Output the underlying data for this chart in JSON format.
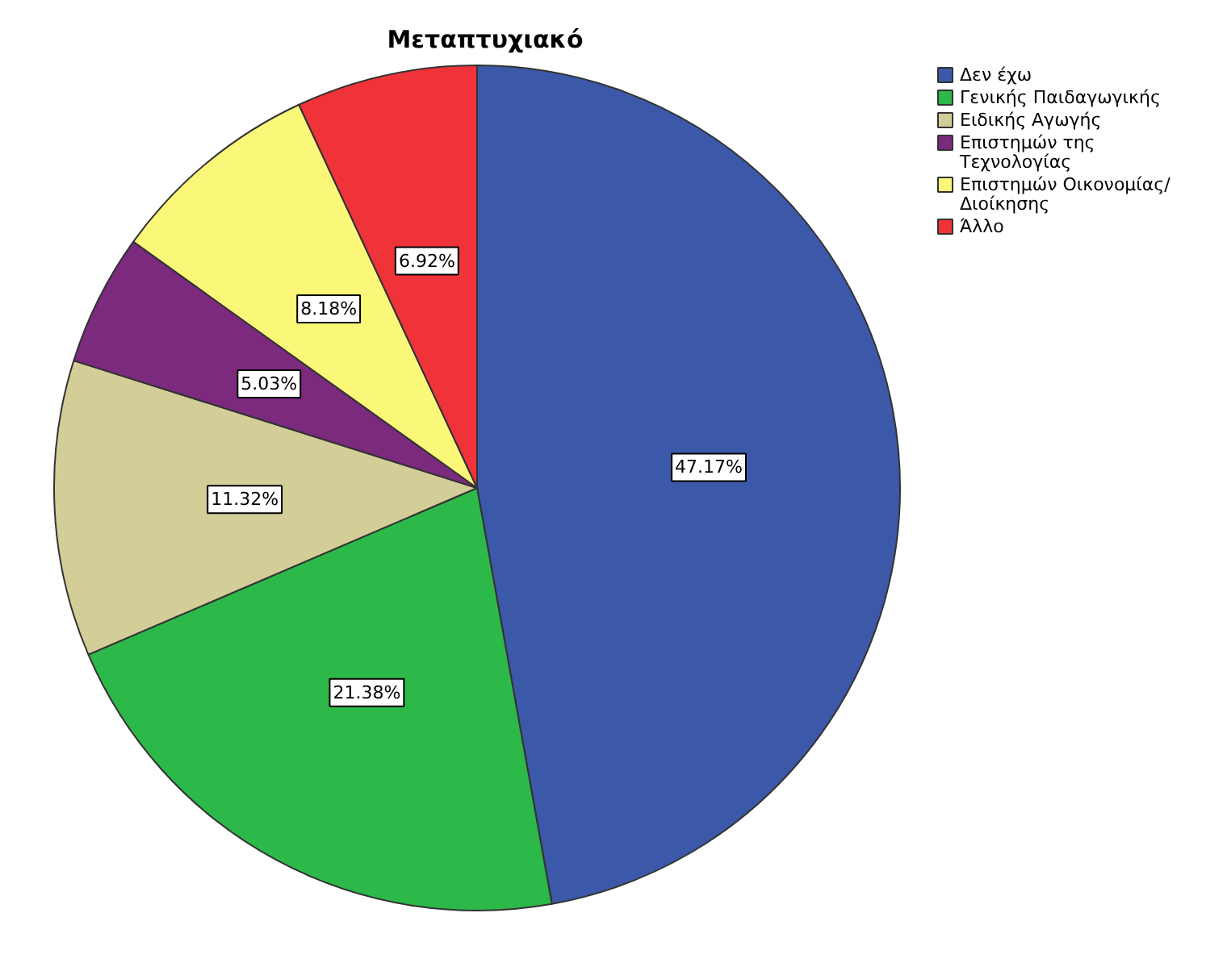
{
  "chart_data": {
    "type": "pie",
    "title": "Μεταπτυχιακό",
    "categories": [
      "Δεν έχω",
      "Γενικής Παιδαγωγικής",
      "Ειδικής Αγωγής",
      "Επιστημών της Τεχνολογίας",
      "Επιστημών Οικονομίας/ Διοίκησης",
      "Άλλο"
    ],
    "values": [
      47.17,
      21.38,
      11.32,
      5.03,
      8.18,
      6.92
    ],
    "value_labels": [
      "47.17%",
      "21.38%",
      "11.32%",
      "5.03%",
      "8.18%",
      "6.92%"
    ],
    "colors": [
      "#3c58a8",
      "#2db84a",
      "#d3cd98",
      "#7b2a7e",
      "#fbf779",
      "#ef3339"
    ],
    "legend": "top right"
  }
}
